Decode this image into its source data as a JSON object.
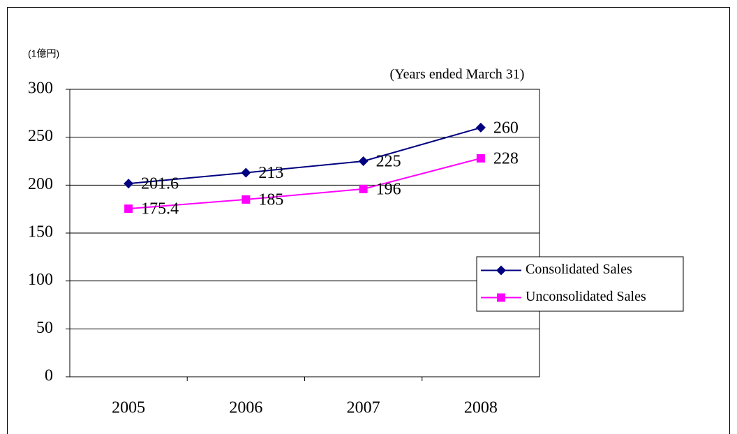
{
  "chart_data": {
    "type": "line",
    "y_label": "(1億円)",
    "subtitle": "(Years ended March 31)",
    "categories": [
      "2005",
      "2006",
      "2007",
      "2008"
    ],
    "series": [
      {
        "name": "Consolidated Sales",
        "color": "#000080",
        "marker": "diamond",
        "values": [
          201.6,
          213,
          225,
          260
        ]
      },
      {
        "name": "Unconsolidated Sales",
        "color": "#ff00ff",
        "marker": "square",
        "values": [
          175.4,
          185,
          196,
          228
        ]
      }
    ],
    "ylim": [
      0,
      300
    ],
    "yticks": [
      0,
      50,
      100,
      150,
      200,
      250,
      300
    ],
    "grid": true,
    "legend": "right"
  }
}
